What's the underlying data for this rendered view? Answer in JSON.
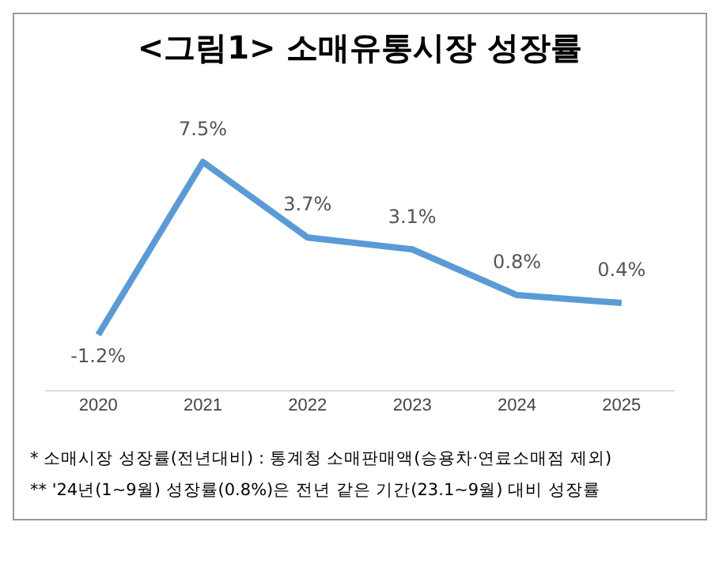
{
  "chart_data": {
    "type": "line",
    "title": "<그림1> 소매유통시장 성장률",
    "categories": [
      "2020",
      "2021",
      "2022",
      "2023",
      "2024",
      "2025"
    ],
    "series": [
      {
        "color": "#5b9bd5",
        "values": [
          -1.2,
          7.5,
          3.7,
          3.1,
          0.8,
          0.4
        ],
        "value_labels": [
          "-1.2%",
          "7.5%",
          "3.7%",
          "3.1%",
          "0.8%",
          "0.4%"
        ]
      }
    ],
    "tick_labels": "x",
    "grid": false,
    "legend": false,
    "marker": "none",
    "annotations": [
      "* 소매시장 성장률(전년대비) : 통계청 소매판매액(승용차·연료소매점 제외)",
      "** '24년(1~9월) 성장률(0.8%)은 전년 같은 기간(23.1~9월) 대비 성장률"
    ]
  }
}
